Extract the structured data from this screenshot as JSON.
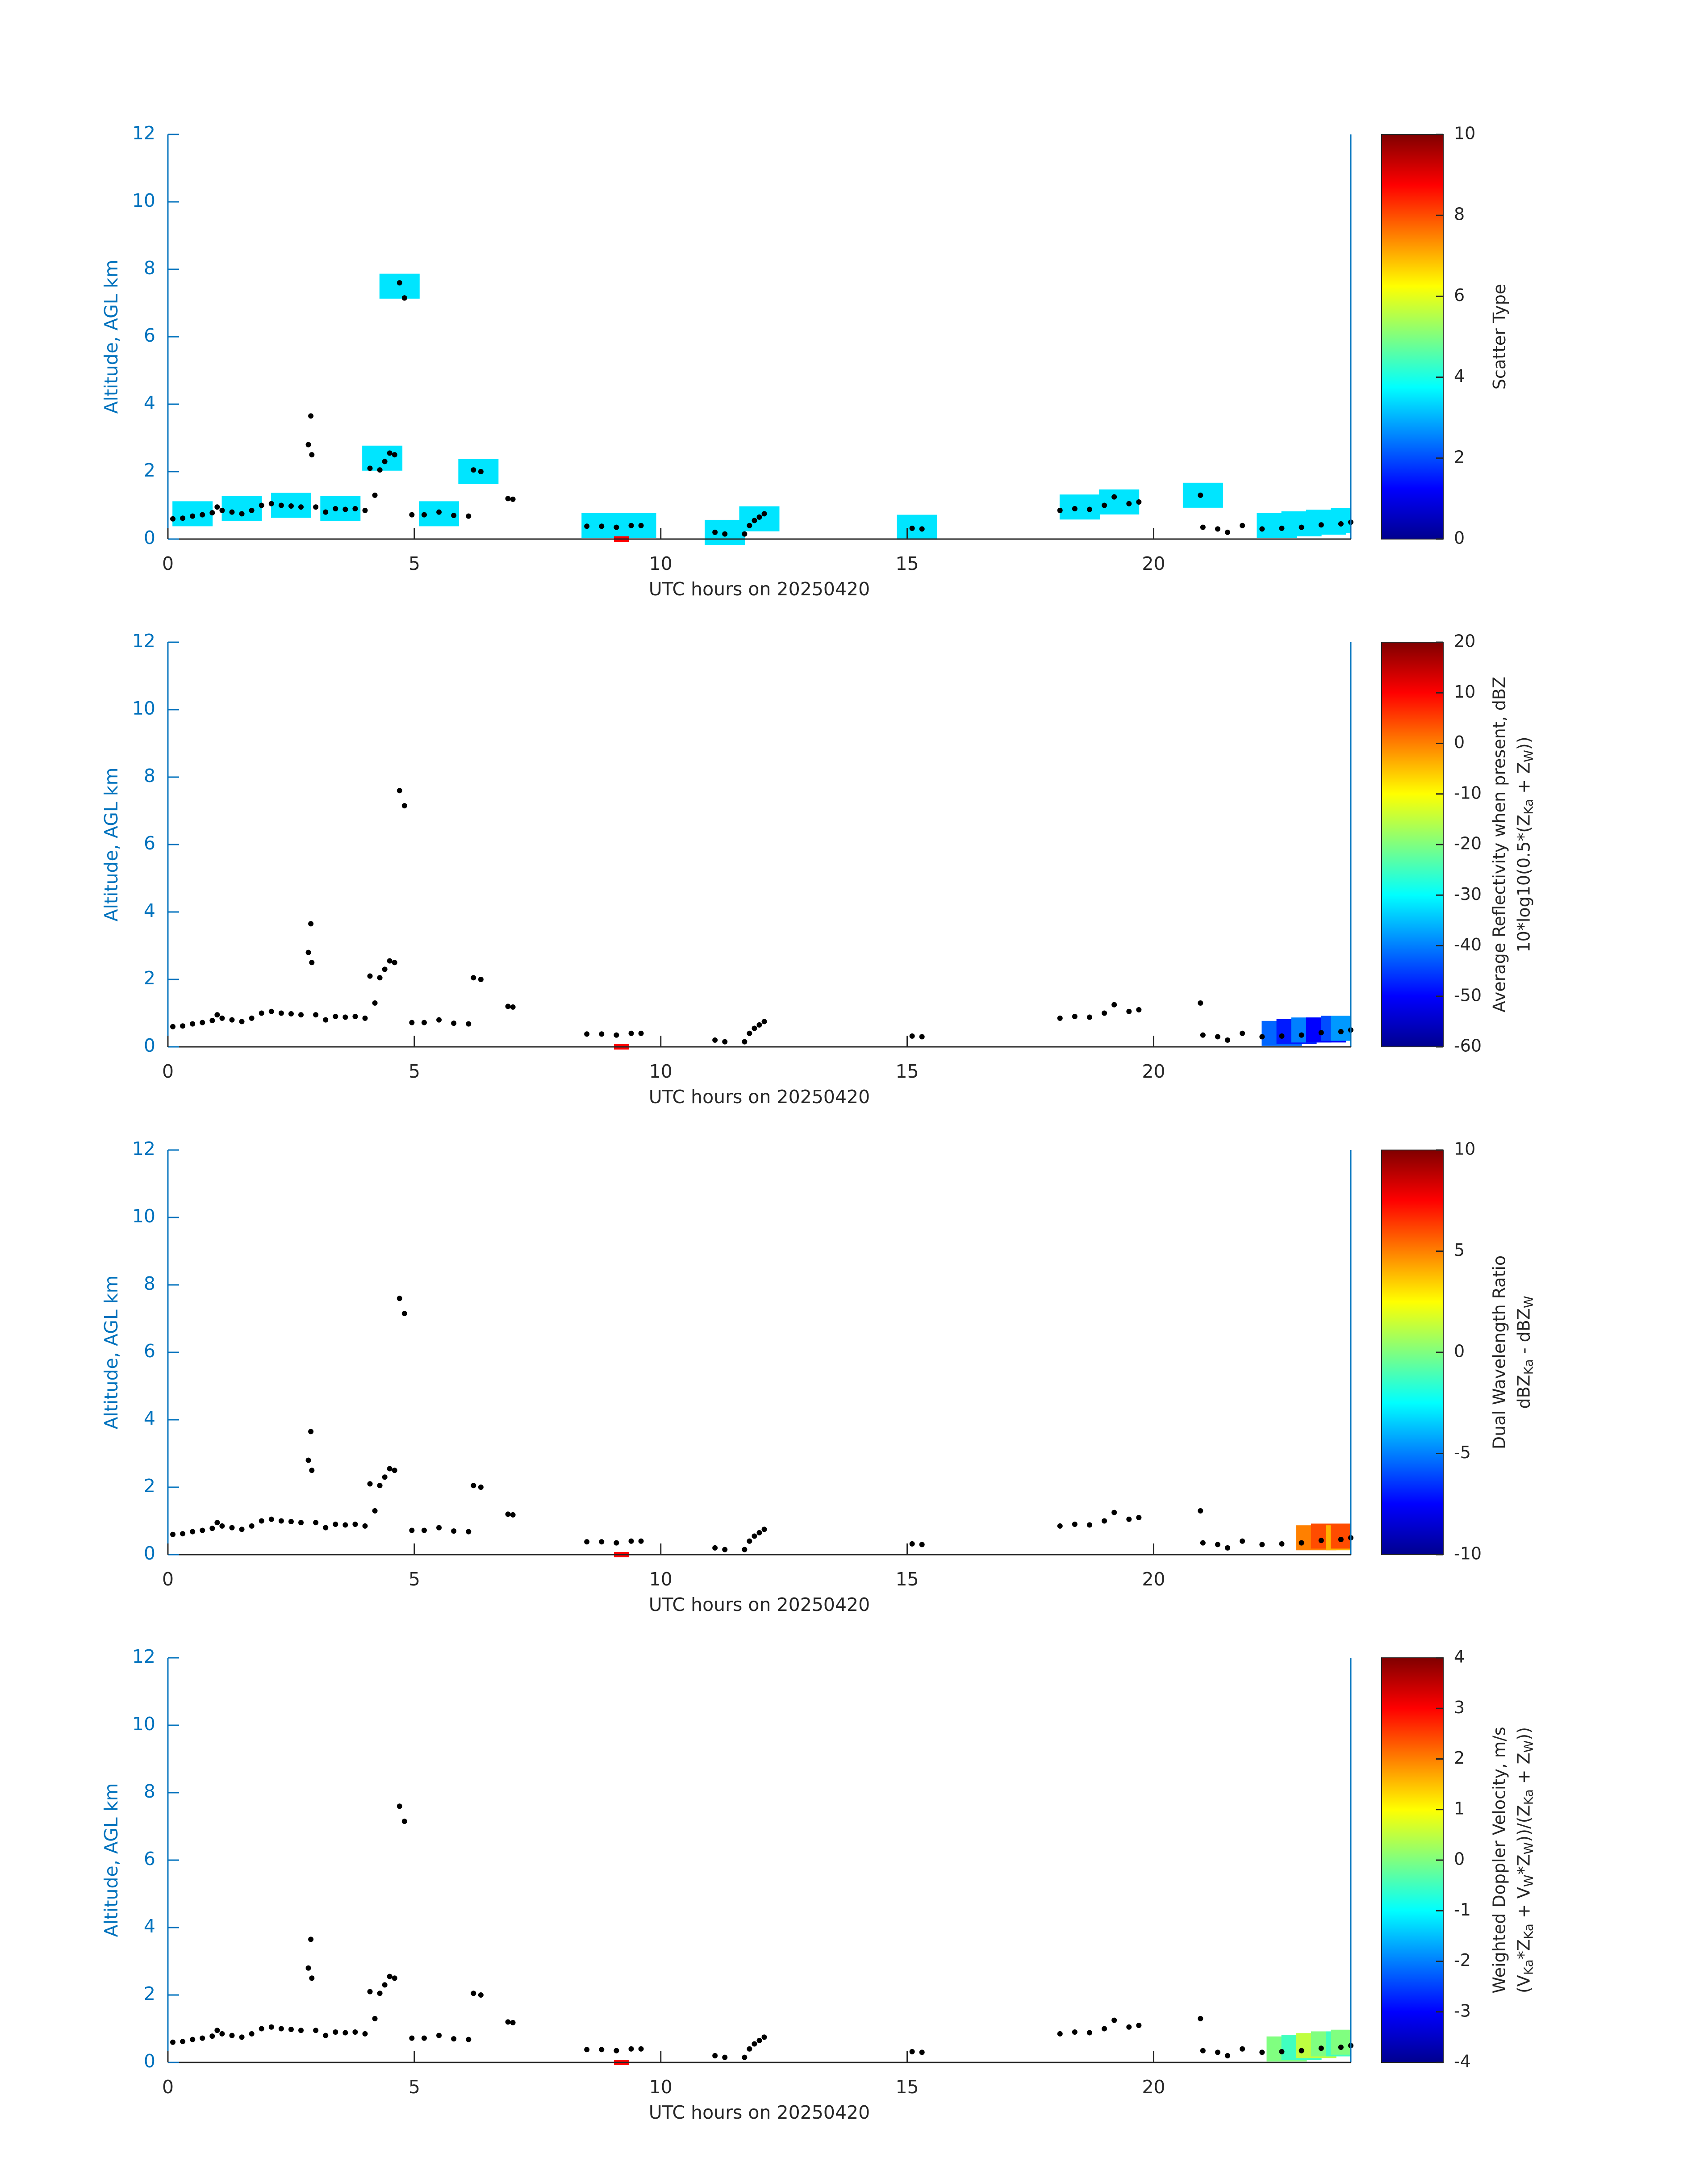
{
  "chart_data": [
    {
      "type": "scatter",
      "xlabel": "UTC hours on 20250420",
      "ylabel": "Altitude, AGL km",
      "xlim": [
        0,
        24
      ],
      "ylim": [
        0,
        12
      ],
      "xticks": [
        0,
        5,
        10,
        15,
        20
      ],
      "yticks": [
        0,
        2,
        4,
        6,
        8,
        10,
        12
      ],
      "x": [
        0.1,
        0.3,
        0.5,
        0.7,
        0.9,
        1.0,
        1.1,
        1.3,
        1.5,
        1.7,
        1.9,
        2.1,
        2.3,
        2.5,
        2.7,
        2.85,
        2.9,
        2.92,
        3.0,
        3.2,
        3.4,
        3.6,
        3.8,
        4.0,
        4.1,
        4.2,
        4.3,
        4.4,
        4.5,
        4.6,
        4.7,
        4.8,
        4.95,
        5.2,
        5.5,
        5.8,
        6.1,
        6.2,
        6.35,
        6.9,
        7.0,
        8.5,
        8.8,
        9.1,
        9.4,
        9.6,
        11.1,
        11.3,
        11.7,
        11.8,
        11.9,
        12.0,
        12.1,
        15.1,
        15.3,
        18.1,
        18.4,
        18.7,
        19.0,
        19.2,
        19.5,
        19.7,
        20.95,
        21.0,
        21.3,
        21.5,
        21.8,
        22.2,
        22.6,
        23.0,
        23.4,
        23.8,
        24.0
      ],
      "y": [
        0.6,
        0.62,
        0.68,
        0.72,
        0.78,
        0.95,
        0.85,
        0.8,
        0.75,
        0.85,
        1.0,
        1.05,
        1.0,
        0.98,
        0.95,
        2.8,
        3.65,
        2.5,
        0.95,
        0.8,
        0.9,
        0.88,
        0.9,
        0.85,
        2.1,
        1.3,
        2.05,
        2.3,
        2.55,
        2.5,
        7.6,
        7.15,
        0.72,
        0.72,
        0.8,
        0.7,
        0.68,
        2.05,
        2.0,
        1.2,
        1.18,
        0.38,
        0.38,
        0.35,
        0.4,
        0.4,
        0.2,
        0.15,
        0.15,
        0.4,
        0.55,
        0.65,
        0.75,
        0.32,
        0.3,
        0.85,
        0.9,
        0.88,
        1.0,
        1.25,
        1.05,
        1.1,
        1.3,
        0.35,
        0.3,
        0.2,
        0.4,
        0.3,
        0.32,
        0.35,
        0.42,
        0.45,
        0.5
      ],
      "shading": {
        "x": [
          0.5,
          1.5,
          2.5,
          3.5,
          4.35,
          4.7,
          5.5,
          6.3,
          8.8,
          9.5,
          11.3,
          12.0,
          15.2,
          18.5,
          19.3,
          21.0,
          22.5,
          23.0,
          23.5,
          24.0
        ],
        "y": [
          0.75,
          0.9,
          1.0,
          0.9,
          2.4,
          7.5,
          0.75,
          2.0,
          0.4,
          0.4,
          0.2,
          0.6,
          0.35,
          0.95,
          1.1,
          1.3,
          0.4,
          0.45,
          0.5,
          0.55
        ],
        "values": [
          3.5,
          3.5,
          3.5,
          3.5,
          3.5,
          3.5,
          3.5,
          3.5,
          3.5,
          3.5,
          3.5,
          3.5,
          3.5,
          3.5,
          3.5,
          3.5,
          3.5,
          3.5,
          3.5,
          3.5
        ]
      },
      "marker": {
        "x": [
          9.05,
          9.35
        ],
        "color": "#ff0000"
      },
      "colorbar": {
        "lim": [
          0,
          10
        ],
        "ticks": [
          0,
          2,
          4,
          6,
          8,
          10
        ],
        "colormap": "jet",
        "label": [
          [
            {
              "text": "Scatter Type"
            }
          ]
        ]
      }
    },
    {
      "type": "scatter",
      "xlabel": "UTC hours on 20250420",
      "ylabel": "Altitude, AGL km",
      "xlim": [
        0,
        24
      ],
      "ylim": [
        0,
        12
      ],
      "xticks": [
        0,
        5,
        10,
        15,
        20
      ],
      "yticks": [
        0,
        2,
        4,
        6,
        8,
        10,
        12
      ],
      "x": [
        0.1,
        0.3,
        0.5,
        0.7,
        0.9,
        1.0,
        1.1,
        1.3,
        1.5,
        1.7,
        1.9,
        2.1,
        2.3,
        2.5,
        2.7,
        2.85,
        2.9,
        2.92,
        3.0,
        3.2,
        3.4,
        3.6,
        3.8,
        4.0,
        4.1,
        4.2,
        4.3,
        4.4,
        4.5,
        4.6,
        4.7,
        4.8,
        4.95,
        5.2,
        5.5,
        5.8,
        6.1,
        6.2,
        6.35,
        6.9,
        7.0,
        8.5,
        8.8,
        9.1,
        9.4,
        9.6,
        11.1,
        11.3,
        11.7,
        11.8,
        11.9,
        12.0,
        12.1,
        15.1,
        15.3,
        18.1,
        18.4,
        18.7,
        19.0,
        19.2,
        19.5,
        19.7,
        20.95,
        21.0,
        21.3,
        21.5,
        21.8,
        22.2,
        22.6,
        23.0,
        23.4,
        23.8,
        24.0
      ],
      "y": [
        0.6,
        0.62,
        0.68,
        0.72,
        0.78,
        0.95,
        0.85,
        0.8,
        0.75,
        0.85,
        1.0,
        1.05,
        1.0,
        0.98,
        0.95,
        2.8,
        3.65,
        2.5,
        0.95,
        0.8,
        0.9,
        0.88,
        0.9,
        0.85,
        2.1,
        1.3,
        2.05,
        2.3,
        2.55,
        2.5,
        7.6,
        7.15,
        0.72,
        0.72,
        0.8,
        0.7,
        0.68,
        2.05,
        2.0,
        1.2,
        1.18,
        0.38,
        0.38,
        0.35,
        0.4,
        0.4,
        0.2,
        0.15,
        0.15,
        0.4,
        0.55,
        0.65,
        0.75,
        0.32,
        0.3,
        0.85,
        0.9,
        0.88,
        1.0,
        1.25,
        1.05,
        1.1,
        1.3,
        0.35,
        0.3,
        0.2,
        0.4,
        0.3,
        0.32,
        0.35,
        0.42,
        0.45,
        0.5
      ],
      "shading": {
        "x": [
          22.6,
          22.9,
          23.2,
          23.5,
          23.8,
          24.0
        ],
        "y": [
          0.4,
          0.45,
          0.5,
          0.5,
          0.55,
          0.55
        ],
        "values": [
          -42,
          -48,
          -40,
          -50,
          -44,
          -38
        ]
      },
      "marker": {
        "x": [
          9.05,
          9.35
        ],
        "color": "#ff0000"
      },
      "colorbar": {
        "lim": [
          -60,
          20
        ],
        "ticks": [
          -60,
          -50,
          -40,
          -30,
          -20,
          -10,
          0,
          10,
          20
        ],
        "colormap": "jet",
        "label": [
          [
            {
              "text": "Average Reflectivity when present, dBZ"
            }
          ],
          [
            {
              "text": "10*log10(0.5*(Z"
            },
            {
              "text": "Ka",
              "sub": true
            },
            {
              "text": " + Z"
            },
            {
              "text": "W",
              "sub": true
            },
            {
              "text": "))"
            }
          ]
        ]
      }
    },
    {
      "type": "scatter",
      "xlabel": "UTC hours on 20250420",
      "ylabel": "Altitude, AGL km",
      "xlim": [
        0,
        24
      ],
      "ylim": [
        0,
        12
      ],
      "xticks": [
        0,
        5,
        10,
        15,
        20
      ],
      "yticks": [
        0,
        2,
        4,
        6,
        8,
        10,
        12
      ],
      "x": [
        0.1,
        0.3,
        0.5,
        0.7,
        0.9,
        1.0,
        1.1,
        1.3,
        1.5,
        1.7,
        1.9,
        2.1,
        2.3,
        2.5,
        2.7,
        2.85,
        2.9,
        2.92,
        3.0,
        3.2,
        3.4,
        3.6,
        3.8,
        4.0,
        4.1,
        4.2,
        4.3,
        4.4,
        4.5,
        4.6,
        4.7,
        4.8,
        4.95,
        5.2,
        5.5,
        5.8,
        6.1,
        6.2,
        6.35,
        6.9,
        7.0,
        8.5,
        8.8,
        9.1,
        9.4,
        9.6,
        11.1,
        11.3,
        11.7,
        11.8,
        11.9,
        12.0,
        12.1,
        15.1,
        15.3,
        18.1,
        18.4,
        18.7,
        19.0,
        19.2,
        19.5,
        19.7,
        20.95,
        21.0,
        21.3,
        21.5,
        21.8,
        22.2,
        22.6,
        23.0,
        23.4,
        23.8,
        24.0
      ],
      "y": [
        0.6,
        0.62,
        0.68,
        0.72,
        0.78,
        0.95,
        0.85,
        0.8,
        0.75,
        0.85,
        1.0,
        1.05,
        1.0,
        0.98,
        0.95,
        2.8,
        3.65,
        2.5,
        0.95,
        0.8,
        0.9,
        0.88,
        0.9,
        0.85,
        2.1,
        1.3,
        2.05,
        2.3,
        2.55,
        2.5,
        7.6,
        7.15,
        0.72,
        0.72,
        0.8,
        0.7,
        0.68,
        2.05,
        2.0,
        1.2,
        1.18,
        0.38,
        0.38,
        0.35,
        0.4,
        0.4,
        0.2,
        0.15,
        0.15,
        0.4,
        0.55,
        0.65,
        0.75,
        0.32,
        0.3,
        0.85,
        0.9,
        0.88,
        1.0,
        1.25,
        1.05,
        1.1,
        1.3,
        0.35,
        0.3,
        0.2,
        0.4,
        0.3,
        0.32,
        0.35,
        0.42,
        0.45,
        0.5
      ],
      "shading": {
        "x": [
          23.3,
          23.6,
          23.9,
          24.0
        ],
        "y": [
          0.5,
          0.55,
          0.5,
          0.55
        ],
        "values": [
          5,
          6,
          4,
          6
        ]
      },
      "marker": {
        "x": [
          9.05,
          9.35
        ],
        "color": "#ff0000"
      },
      "colorbar": {
        "lim": [
          -10,
          10
        ],
        "ticks": [
          -10,
          -5,
          0,
          5,
          10
        ],
        "colormap": "jet",
        "label": [
          [
            {
              "text": "Dual Wavelength Ratio"
            }
          ],
          [
            {
              "text": "dBZ"
            },
            {
              "text": "Ka",
              "sub": true
            },
            {
              "text": " - dBZ"
            },
            {
              "text": "W",
              "sub": true
            }
          ]
        ]
      }
    },
    {
      "type": "scatter",
      "xlabel": "UTC hours on 20250420",
      "ylabel": "Altitude, AGL km",
      "xlim": [
        0,
        24
      ],
      "ylim": [
        0,
        12
      ],
      "xticks": [
        0,
        5,
        10,
        15,
        20
      ],
      "yticks": [
        0,
        2,
        4,
        6,
        8,
        10,
        12
      ],
      "x": [
        0.1,
        0.3,
        0.5,
        0.7,
        0.9,
        1.0,
        1.1,
        1.3,
        1.5,
        1.7,
        1.9,
        2.1,
        2.3,
        2.5,
        2.7,
        2.85,
        2.9,
        2.92,
        3.0,
        3.2,
        3.4,
        3.6,
        3.8,
        4.0,
        4.1,
        4.2,
        4.3,
        4.4,
        4.5,
        4.6,
        4.7,
        4.8,
        4.95,
        5.2,
        5.5,
        5.8,
        6.1,
        6.2,
        6.35,
        6.9,
        7.0,
        8.5,
        8.8,
        9.1,
        9.4,
        9.6,
        11.1,
        11.3,
        11.7,
        11.8,
        11.9,
        12.0,
        12.1,
        15.1,
        15.3,
        18.1,
        18.4,
        18.7,
        19.0,
        19.2,
        19.5,
        19.7,
        20.95,
        21.0,
        21.3,
        21.5,
        21.8,
        22.2,
        22.6,
        23.0,
        23.4,
        23.8,
        24.0
      ],
      "y": [
        0.6,
        0.62,
        0.68,
        0.72,
        0.78,
        0.95,
        0.85,
        0.8,
        0.75,
        0.85,
        1.0,
        1.05,
        1.0,
        0.98,
        0.95,
        2.8,
        3.65,
        2.5,
        0.95,
        0.8,
        0.9,
        0.88,
        0.9,
        0.85,
        2.1,
        1.3,
        2.05,
        2.3,
        2.55,
        2.5,
        7.6,
        7.15,
        0.72,
        0.72,
        0.8,
        0.7,
        0.68,
        2.05,
        2.0,
        1.2,
        1.18,
        0.38,
        0.38,
        0.35,
        0.4,
        0.4,
        0.2,
        0.15,
        0.15,
        0.4,
        0.55,
        0.65,
        0.75,
        0.32,
        0.3,
        0.85,
        0.9,
        0.88,
        1.0,
        1.25,
        1.05,
        1.1,
        1.3,
        0.35,
        0.3,
        0.2,
        0.4,
        0.3,
        0.32,
        0.35,
        0.42,
        0.45,
        0.5
      ],
      "shading": {
        "x": [
          22.7,
          23.0,
          23.3,
          23.6,
          23.9,
          24.0
        ],
        "y": [
          0.4,
          0.45,
          0.5,
          0.55,
          0.55,
          0.6
        ],
        "values": [
          0,
          -0.5,
          0.5,
          0,
          -0.5,
          0
        ]
      },
      "marker": {
        "x": [
          9.05,
          9.35
        ],
        "color": "#ff0000"
      },
      "colorbar": {
        "lim": [
          -4,
          4
        ],
        "ticks": [
          -4,
          -3,
          -2,
          -1,
          0,
          1,
          2,
          3,
          4
        ],
        "colormap": "jet",
        "label": [
          [
            {
              "text": "Weighted Doppler Velocity, m/s"
            }
          ],
          [
            {
              "text": "(V"
            },
            {
              "text": "Ka",
              "sub": true
            },
            {
              "text": "*Z"
            },
            {
              "text": "Ka",
              "sub": true
            },
            {
              "text": " + V"
            },
            {
              "text": "W",
              "sub": true
            },
            {
              "text": "*Z"
            },
            {
              "text": "W",
              "sub": true
            },
            {
              "text": "))/(Z"
            },
            {
              "text": "Ka",
              "sub": true
            },
            {
              "text": " + Z"
            },
            {
              "text": "W",
              "sub": true
            },
            {
              "text": "))"
            }
          ]
        ]
      }
    }
  ]
}
